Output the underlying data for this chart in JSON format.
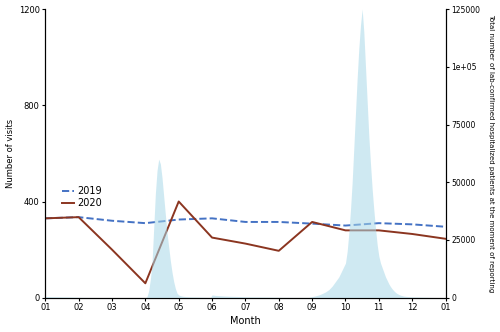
{
  "months_labels": [
    "01",
    "02",
    "03",
    "04",
    "05",
    "06",
    "07",
    "08",
    "09",
    "10",
    "11",
    "12",
    "01"
  ],
  "months_x": [
    0,
    1,
    2,
    3,
    4,
    5,
    6,
    7,
    8,
    9,
    10,
    11,
    12
  ],
  "visits_2019": [
    330,
    335,
    320,
    310,
    325,
    330,
    315,
    315,
    308,
    300,
    310,
    305,
    295
  ],
  "visits_2020": [
    330,
    335,
    200,
    60,
    400,
    250,
    225,
    195,
    315,
    280,
    280,
    265,
    245
  ],
  "covid_x_fine": [
    0,
    0.1,
    0.2,
    0.3,
    0.4,
    0.5,
    0.6,
    0.7,
    0.8,
    0.9,
    1,
    1.1,
    1.2,
    1.3,
    1.4,
    1.5,
    1.6,
    1.7,
    1.8,
    1.9,
    2,
    2.1,
    2.2,
    2.3,
    2.4,
    2.5,
    2.6,
    2.7,
    2.8,
    2.9,
    3,
    3.05,
    3.1,
    3.15,
    3.2,
    3.25,
    3.3,
    3.35,
    3.4,
    3.45,
    3.5,
    3.55,
    3.6,
    3.65,
    3.7,
    3.75,
    3.8,
    3.85,
    3.9,
    3.95,
    4,
    4.05,
    4.1,
    4.15,
    4.2,
    4.25,
    4.3,
    4.35,
    4.4,
    4.45,
    4.5,
    4.55,
    4.6,
    4.65,
    4.7,
    4.75,
    4.8,
    4.85,
    4.9,
    4.95,
    5,
    5.1,
    5.2,
    5.3,
    5.4,
    5.5,
    5.6,
    5.7,
    5.8,
    5.9,
    6,
    6.1,
    6.2,
    6.3,
    6.4,
    6.5,
    6.6,
    6.7,
    6.8,
    6.9,
    7,
    7.1,
    7.2,
    7.3,
    7.4,
    7.5,
    7.6,
    7.7,
    7.8,
    7.9,
    8,
    8.1,
    8.2,
    8.3,
    8.4,
    8.5,
    8.6,
    8.7,
    8.8,
    8.9,
    9,
    9.05,
    9.1,
    9.15,
    9.2,
    9.25,
    9.3,
    9.35,
    9.4,
    9.45,
    9.5,
    9.55,
    9.6,
    9.65,
    9.7,
    9.75,
    9.8,
    9.85,
    9.9,
    9.95,
    10,
    10.05,
    10.1,
    10.15,
    10.2,
    10.25,
    10.3,
    10.35,
    10.4,
    10.45,
    10.5,
    10.55,
    10.6,
    10.65,
    10.7,
    10.75,
    10.8,
    10.85,
    10.9,
    10.95,
    11,
    11.05,
    11.1,
    11.15,
    11.2,
    11.25,
    11.3,
    11.35,
    11.4,
    11.45,
    11.5,
    11.55,
    11.6,
    11.65,
    11.7,
    11.75,
    11.8,
    11.85,
    11.9,
    11.95,
    12
  ],
  "covid_y_fine": [
    500,
    480,
    450,
    420,
    390,
    360,
    330,
    300,
    270,
    240,
    200,
    180,
    160,
    140,
    120,
    100,
    90,
    80,
    70,
    60,
    40,
    30,
    20,
    15,
    10,
    8,
    5,
    3,
    2,
    1,
    2,
    500,
    3000,
    8000,
    15000,
    30000,
    45000,
    55000,
    60000,
    58000,
    52000,
    44000,
    36000,
    28000,
    22000,
    16000,
    11000,
    7000,
    4000,
    2000,
    1200,
    900,
    700,
    600,
    500,
    450,
    400,
    380,
    360,
    340,
    320,
    300,
    280,
    260,
    240,
    220,
    200,
    180,
    160,
    140,
    1200,
    1000,
    900,
    800,
    700,
    650,
    600,
    550,
    500,
    450,
    400,
    380,
    360,
    340,
    320,
    300,
    280,
    260,
    240,
    220,
    200,
    190,
    180,
    170,
    160,
    150,
    140,
    130,
    120,
    110,
    500,
    800,
    1200,
    1800,
    2500,
    3500,
    5000,
    7000,
    9000,
    12000,
    15000,
    20000,
    28000,
    38000,
    50000,
    65000,
    80000,
    95000,
    108000,
    118000,
    125000,
    115000,
    100000,
    85000,
    70000,
    58000,
    47000,
    38000,
    30000,
    23000,
    18000,
    15000,
    13000,
    11000,
    9000,
    7500,
    6000,
    4800,
    3800,
    3000,
    2300,
    1800,
    1400,
    1100,
    900,
    700,
    600,
    500,
    450,
    400,
    380,
    360,
    340,
    320,
    300,
    280,
    260,
    240,
    220,
    200,
    180,
    160,
    140,
    120,
    100,
    80,
    60,
    50,
    40,
    30,
    20
  ],
  "covid_scale_max": 125000,
  "visits_max": 1200,
  "area_color": "#a8d8e8",
  "line_2019_color": "#4472c4",
  "line_2020_color": "#8b3520",
  "ylabel_left": "Number of visits",
  "ylabel_right": "Total number of lab-confirmed hospitalized patients at the moment of reporting",
  "xlabel": "Month",
  "yticks_left": [
    0,
    400,
    800,
    1200
  ],
  "yticks_right": [
    0,
    25000,
    50000,
    75000,
    100000,
    125000
  ],
  "ytick_right_labels": [
    "0",
    "25000",
    "50000",
    "75000",
    "1e+05",
    "125000"
  ],
  "background_color": "#ffffff"
}
